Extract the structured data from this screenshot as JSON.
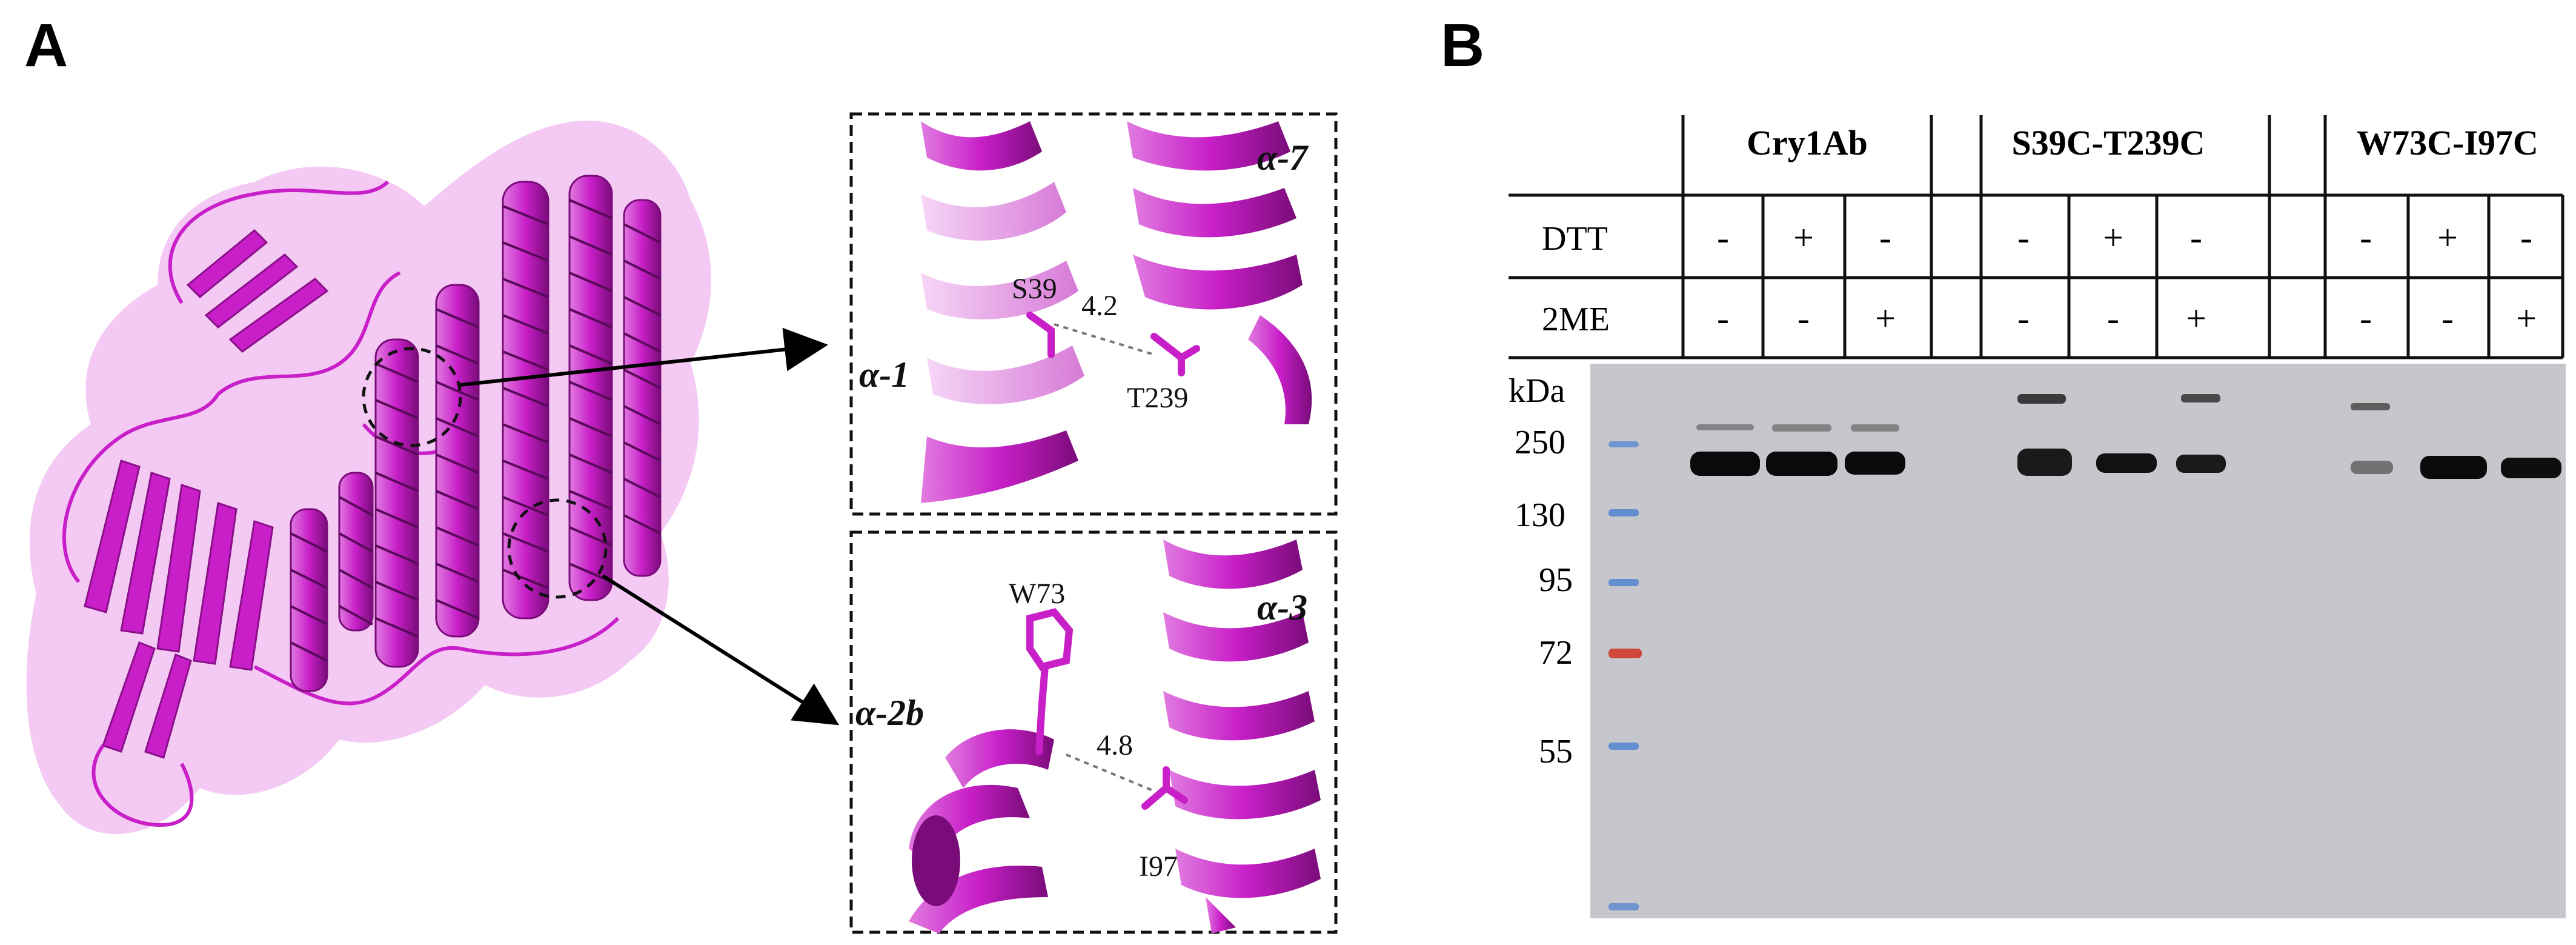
{
  "panel_a": {
    "letter": "A",
    "inset_top": {
      "helix_left": "α-1",
      "helix_right": "α-7",
      "residue_1": "S39",
      "residue_2": "T239",
      "distance": "4.2"
    },
    "inset_bottom": {
      "helix_left": "α-2b",
      "helix_right": "α-3",
      "residue_1": "W73",
      "residue_2": "I97",
      "distance": "4.8"
    },
    "colors": {
      "protein": "#c81fc8",
      "surface": "#f0b8f0",
      "arrow": "#000000"
    }
  },
  "panel_b": {
    "letter": "B",
    "groups": [
      "Cry1Ab",
      "S39C-T239C",
      "W73C-I97C"
    ],
    "rows": [
      {
        "label": "DTT",
        "values": [
          [
            "-",
            "+",
            "-"
          ],
          [
            "-",
            "+",
            "-"
          ],
          [
            "-",
            "+",
            "-"
          ]
        ]
      },
      {
        "label": "2ME",
        "values": [
          [
            "-",
            "-",
            "+"
          ],
          [
            "-",
            "-",
            "+"
          ],
          [
            "-",
            "-",
            "+"
          ]
        ]
      }
    ],
    "marker_unit": "kDa",
    "marker_labels": [
      "250",
      "130",
      "95",
      "72",
      "55"
    ],
    "colors": {
      "gel": "#c6c7cd",
      "band": "#0a0a0a",
      "marker_blue": "#4a7fd1",
      "marker_red": "#d23a2a"
    }
  }
}
